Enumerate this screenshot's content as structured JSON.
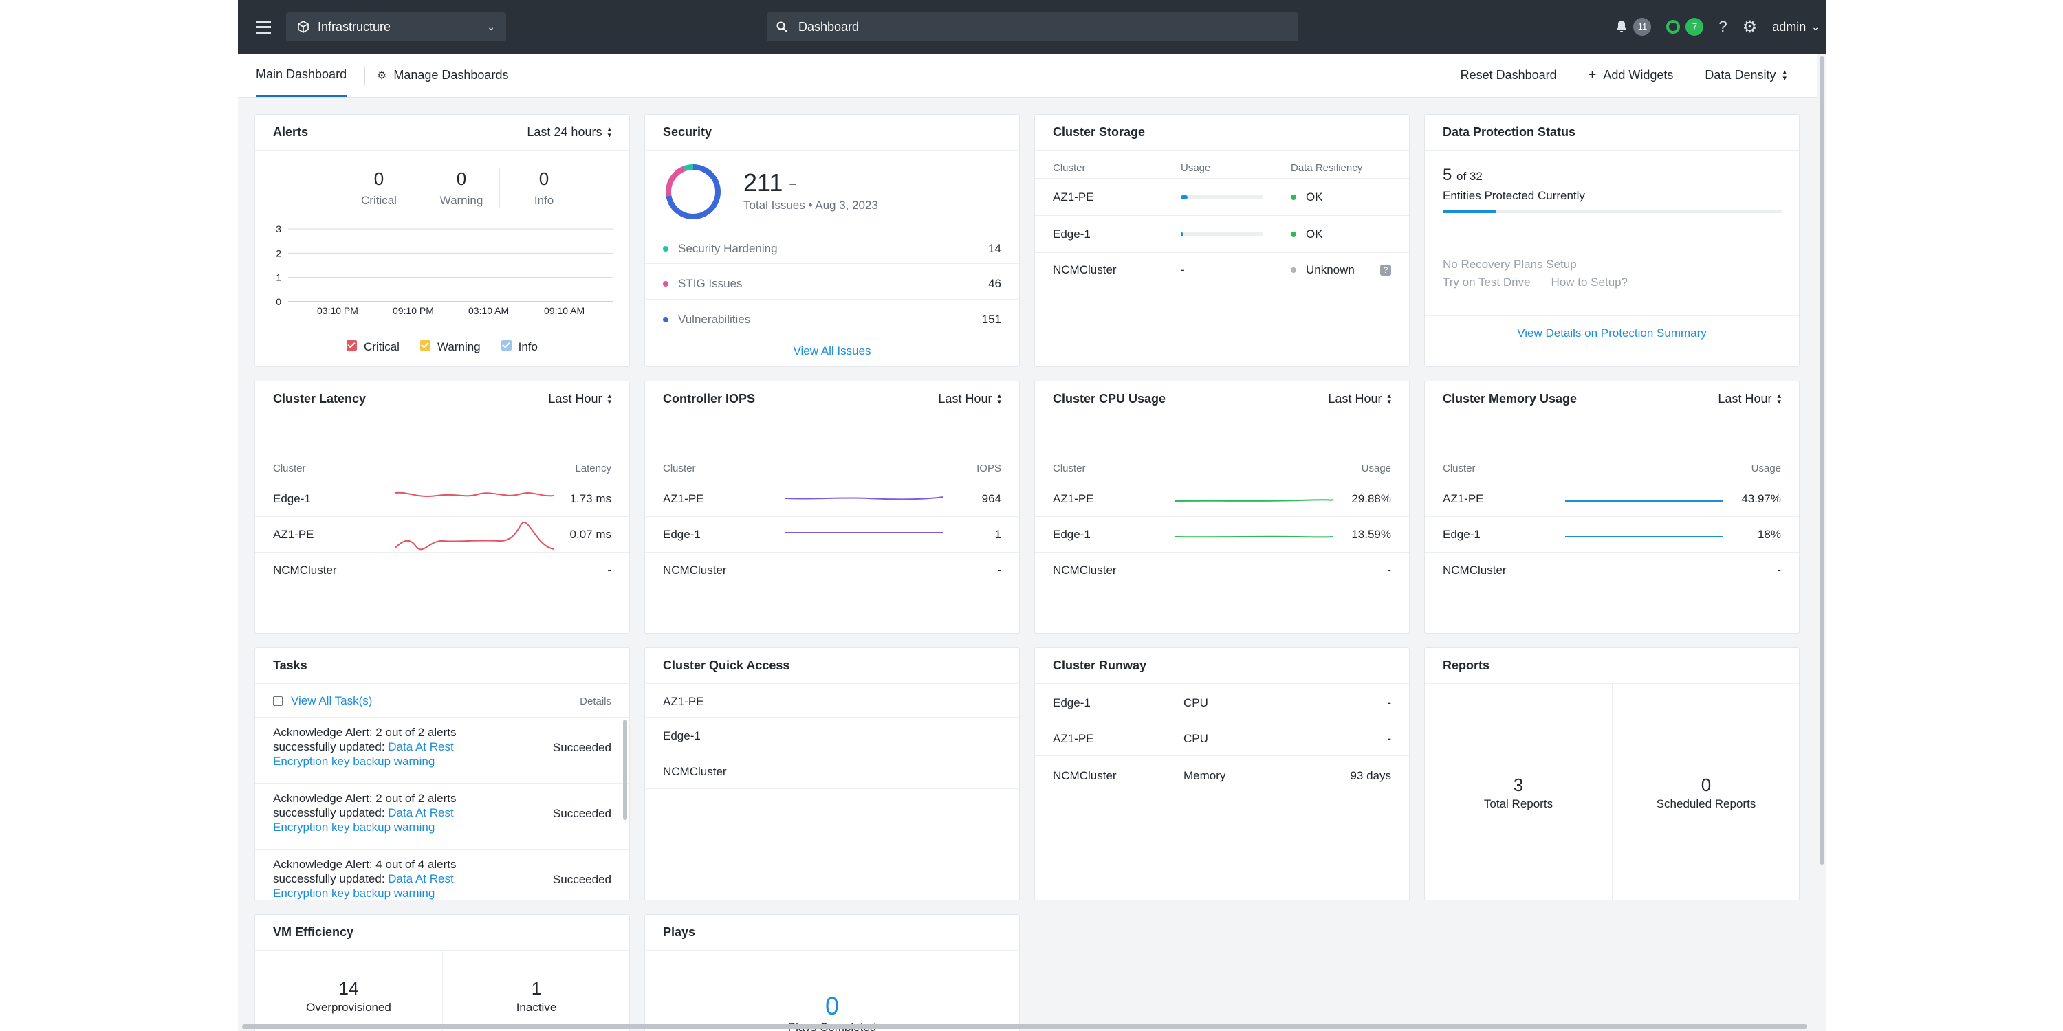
{
  "topbar": {
    "app_name": "Infrastructure",
    "search_placeholder": "Dashboard",
    "alerts_count": "11",
    "tasks_count": "7",
    "user": "admin"
  },
  "tabs": {
    "main": "Main Dashboard",
    "manage": "Manage Dashboards",
    "reset": "Reset Dashboard",
    "add": "Add Widgets",
    "density": "Data Density"
  },
  "alerts": {
    "title": "Alerts",
    "range": "Last 24 hours",
    "critical": "0",
    "critical_label": "Critical",
    "warning": "0",
    "warning_label": "Warning",
    "info": "0",
    "info_label": "Info",
    "yticks": [
      "3",
      "2",
      "1",
      "0"
    ],
    "xticks": [
      "03:10 PM",
      "09:10 PM",
      "03:10 AM",
      "09:10 AM"
    ],
    "legend": [
      "Critical",
      "Warning",
      "Info"
    ],
    "colors": {
      "critical": "#e25563",
      "warning": "#f5c542",
      "info": "#9ec5ec"
    }
  },
  "chart_data": {
    "type": "line",
    "title": "Alerts",
    "x": [
      "03:10 PM",
      "09:10 PM",
      "03:10 AM",
      "09:10 AM"
    ],
    "ylim": [
      0,
      3
    ],
    "series": [
      {
        "name": "Critical",
        "values": [
          0,
          0,
          0,
          0
        ]
      },
      {
        "name": "Warning",
        "values": [
          0,
          0,
          0,
          0
        ]
      },
      {
        "name": "Info",
        "values": [
          0,
          0,
          0,
          0
        ]
      }
    ]
  },
  "security": {
    "title": "Security",
    "total": "211",
    "dash": "–",
    "subtitle": "Total Issues • Aug 3, 2023",
    "items": [
      {
        "label": "Security Hardening",
        "value": "14",
        "color": "#1fc6a6"
      },
      {
        "label": "STIG Issues",
        "value": "46",
        "color": "#e0569b"
      },
      {
        "label": "Vulnerabilities",
        "value": "151",
        "color": "#3a68d8"
      }
    ],
    "link": "View All Issues"
  },
  "storage": {
    "title": "Cluster Storage",
    "headers": [
      "Cluster",
      "Usage",
      "Data Resiliency"
    ],
    "rows": [
      {
        "name": "AZ1-PE",
        "usage": 0.08,
        "status": "OK",
        "color": "#2dbb5a"
      },
      {
        "name": "Edge-1",
        "usage": 0.02,
        "status": "OK",
        "color": "#2dbb5a"
      },
      {
        "name": "NCMCluster",
        "usage_text": "-",
        "status": "Unknown",
        "color": "#b0b5bb"
      }
    ]
  },
  "protection": {
    "title": "Data Protection Status",
    "count": "5",
    "of": "of 32",
    "label": "Entities Protected Currently",
    "fraction": 0.156,
    "no_plans": "No Recovery Plans Setup",
    "try": "Try on Test Drive",
    "how": "How to Setup?",
    "link": "View Details on Protection Summary"
  },
  "latency": {
    "title": "Cluster Latency",
    "range": "Last Hour",
    "headers": [
      "Cluster",
      "Latency"
    ],
    "rows": [
      {
        "name": "Edge-1",
        "value": "1.73 ms"
      },
      {
        "name": "AZ1-PE",
        "value": "0.07 ms"
      },
      {
        "name": "NCMCluster",
        "value": "-"
      }
    ]
  },
  "iops": {
    "title": "Controller IOPS",
    "range": "Last Hour",
    "headers": [
      "Cluster",
      "IOPS"
    ],
    "rows": [
      {
        "name": "AZ1-PE",
        "value": "964"
      },
      {
        "name": "Edge-1",
        "value": "1"
      },
      {
        "name": "NCMCluster",
        "value": "-"
      }
    ]
  },
  "cpu": {
    "title": "Cluster CPU Usage",
    "range": "Last Hour",
    "headers": [
      "Cluster",
      "Usage"
    ],
    "rows": [
      {
        "name": "AZ1-PE",
        "value": "29.88%"
      },
      {
        "name": "Edge-1",
        "value": "13.59%"
      },
      {
        "name": "NCMCluster",
        "value": "-"
      }
    ]
  },
  "memory": {
    "title": "Cluster Memory Usage",
    "range": "Last Hour",
    "headers": [
      "Cluster",
      "Usage"
    ],
    "rows": [
      {
        "name": "AZ1-PE",
        "value": "43.97%"
      },
      {
        "name": "Edge-1",
        "value": "18%"
      },
      {
        "name": "NCMCluster",
        "value": "-"
      }
    ]
  },
  "tasks": {
    "title": "Tasks",
    "view_all": "View All Task(s)",
    "details": "Details",
    "items": [
      {
        "line1": "Acknowledge Alert: 2 out of 2 alerts",
        "line2a": "successfully updated: ",
        "line2b": "Data At Rest",
        "line3": "Encryption key backup warning",
        "status": "Succeeded"
      },
      {
        "line1": "Acknowledge Alert: 2 out of 2 alerts",
        "line2a": "successfully updated: ",
        "line2b": "Data At Rest",
        "line3": "Encryption key backup warning",
        "status": "Succeeded"
      },
      {
        "line1": "Acknowledge Alert: 4 out of 4 alerts",
        "line2a": "successfully updated: ",
        "line2b": "Data At Rest",
        "line3": "Encryption key backup warning",
        "status": "Succeeded"
      }
    ]
  },
  "quick": {
    "title": "Cluster Quick Access",
    "items": [
      "AZ1-PE",
      "Edge-1",
      "NCMCluster"
    ]
  },
  "runway": {
    "title": "Cluster Runway",
    "rows": [
      {
        "name": "Edge-1",
        "res": "CPU",
        "value": "-"
      },
      {
        "name": "AZ1-PE",
        "res": "CPU",
        "value": "-"
      },
      {
        "name": "NCMCluster",
        "res": "Memory",
        "value": "93 days"
      }
    ]
  },
  "reports": {
    "title": "Reports",
    "total": "3",
    "total_label": "Total Reports",
    "scheduled": "0",
    "scheduled_label": "Scheduled Reports"
  },
  "vm": {
    "title": "VM Efficiency",
    "over": "14",
    "over_label": "Overprovisioned",
    "inactive": "1",
    "inactive_label": "Inactive"
  },
  "plays": {
    "title": "Plays",
    "count": "0",
    "label": "Plays Completed"
  }
}
